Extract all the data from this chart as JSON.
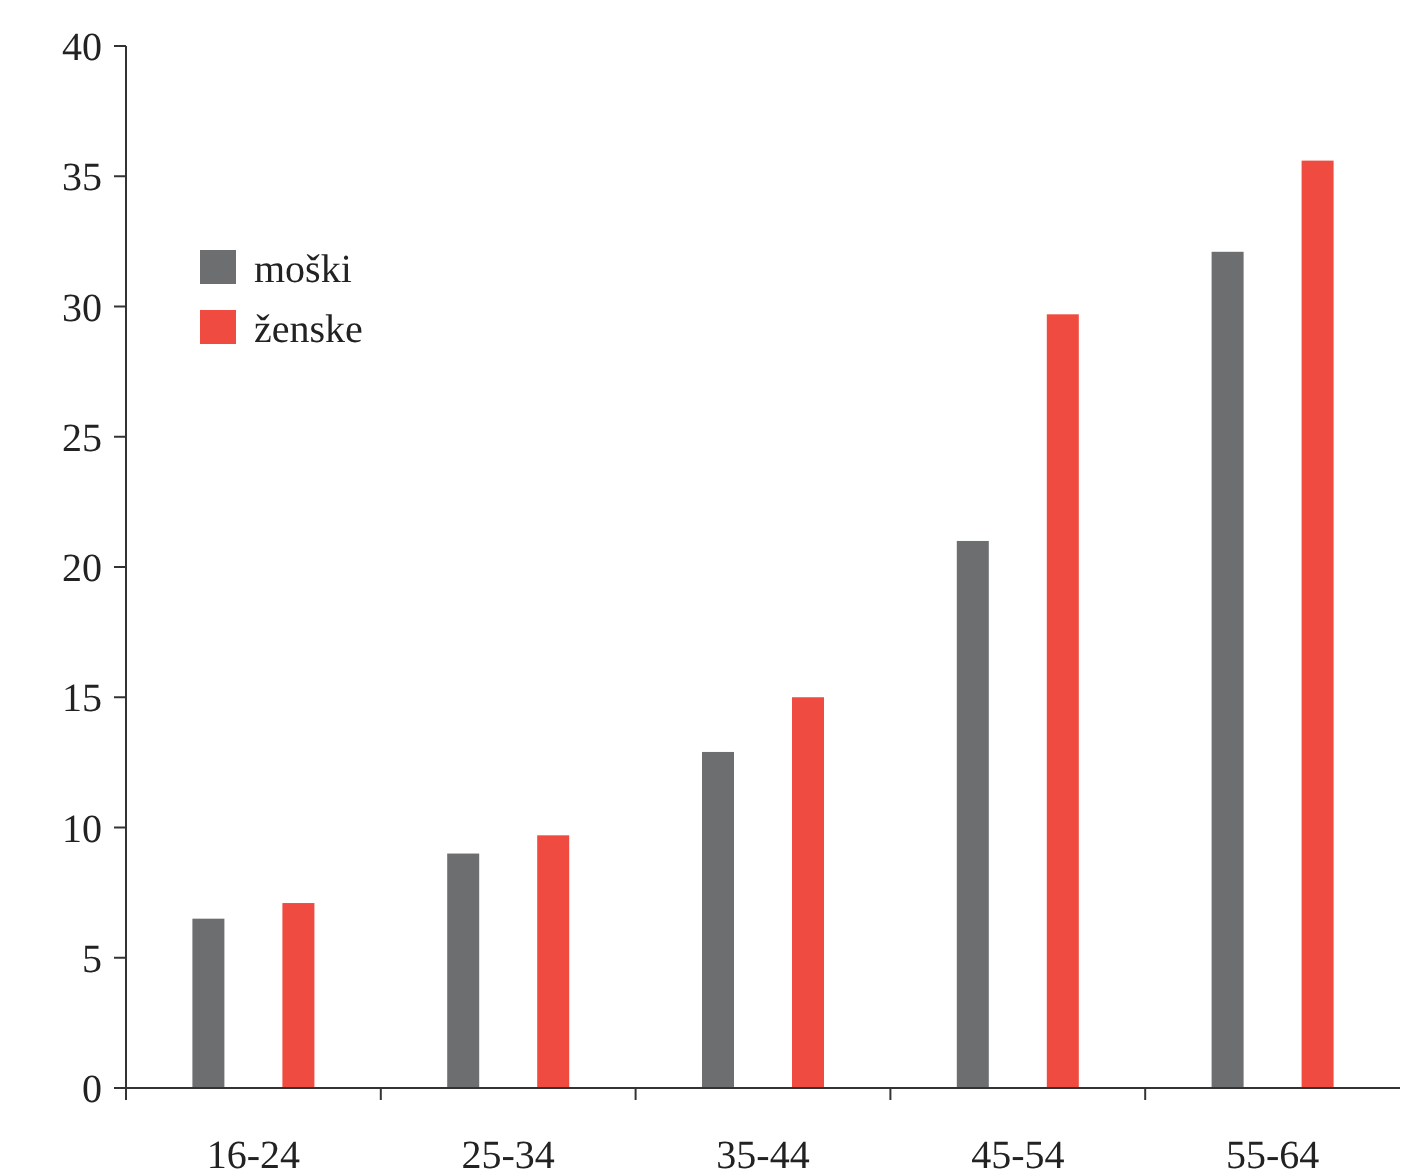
{
  "chart_data": {
    "type": "bar",
    "categories": [
      "16-24",
      "25-34",
      "35-44",
      "45-54",
      "55-64"
    ],
    "series": [
      {
        "name": "moški",
        "color": "#6d6e70",
        "values": [
          6.5,
          9.0,
          12.9,
          21.0,
          32.1
        ]
      },
      {
        "name": "ženske",
        "color": "#ef4b40",
        "values": [
          7.1,
          9.7,
          15.0,
          29.7,
          35.6
        ]
      }
    ],
    "ylim": [
      0,
      40
    ],
    "yticks": [
      0,
      5,
      10,
      15,
      20,
      25,
      30,
      35,
      40
    ],
    "grid": false,
    "legend": "top left"
  }
}
